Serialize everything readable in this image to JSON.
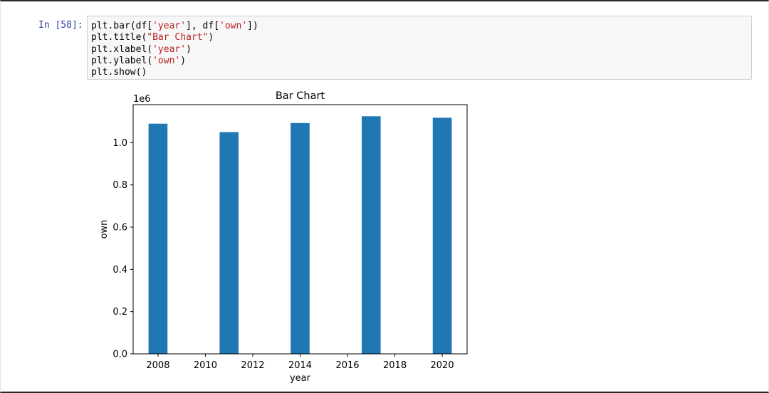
{
  "cell": {
    "prompt": "In [58]:",
    "code_lines": [
      [
        {
          "t": "plt.bar(df["
        },
        {
          "t": "'year'",
          "c": "str"
        },
        {
          "t": "], df["
        },
        {
          "t": "'own'",
          "c": "str"
        },
        {
          "t": "])"
        }
      ],
      [
        {
          "t": "plt.title("
        },
        {
          "t": "\"Bar Chart\"",
          "c": "str"
        },
        {
          "t": ")"
        }
      ],
      [
        {
          "t": "plt.xlabel("
        },
        {
          "t": "'year'",
          "c": "str"
        },
        {
          "t": ")"
        }
      ],
      [
        {
          "t": "plt.ylabel("
        },
        {
          "t": "'own'",
          "c": "str"
        },
        {
          "t": ")"
        }
      ],
      [
        {
          "t": "plt.show()"
        }
      ]
    ]
  },
  "chart_data": {
    "type": "bar",
    "title": "Bar Chart",
    "xlabel": "year",
    "ylabel": "own",
    "offset_label": "1e6",
    "x": [
      2008,
      2011,
      2014,
      2017,
      2020
    ],
    "values": [
      1090000,
      1050000,
      1093000,
      1125000,
      1118000
    ],
    "bar_width": 0.8,
    "xlim": [
      2006.95,
      2021.05
    ],
    "ylim": [
      0,
      1180000
    ],
    "xticks": [
      2008,
      2010,
      2012,
      2014,
      2016,
      2018,
      2020
    ],
    "xtick_labels": [
      "2008",
      "2010",
      "2012",
      "2014",
      "2016",
      "2018",
      "2020"
    ],
    "yticks": [
      0,
      200000,
      400000,
      600000,
      800000,
      1000000
    ],
    "ytick_labels": [
      "0.0",
      "0.2",
      "0.4",
      "0.6",
      "0.8",
      "1.0"
    ],
    "grid": false,
    "color": "#1f77b4"
  }
}
